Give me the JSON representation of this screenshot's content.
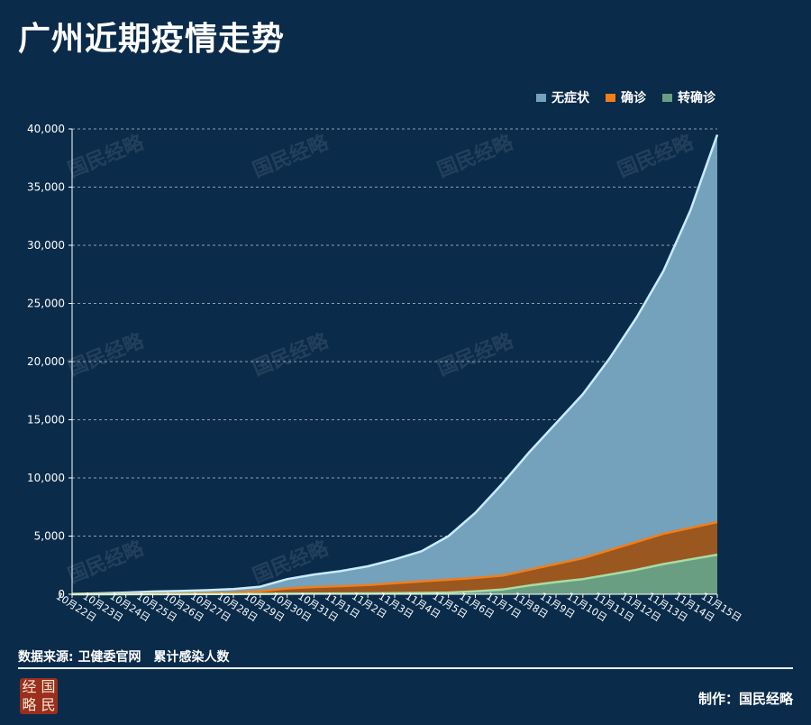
{
  "title": "广州近期疫情走势",
  "source_label": "数据来源: 卫健委官网",
  "source_note": "累计感染人数",
  "credit": "制作：国民经略",
  "seal": {
    "chars": [
      "经",
      "国",
      "略",
      "民"
    ],
    "color": "#9a2f1e"
  },
  "watermark": "国民经略",
  "colors": {
    "background": "#0a2b4a",
    "asymptomatic_fill": "#74a1bb",
    "asymptomatic_line": "#c8ecff",
    "confirmed_fill": "#9a571f",
    "confirmed_line": "#f07e1a",
    "converted_fill": "#6a9e82",
    "converted_line": "#a8dca4"
  },
  "chart_data": {
    "type": "area",
    "title": "广州近期疫情走势",
    "xlabel": "",
    "ylabel": "",
    "ylim": [
      0,
      40000
    ],
    "yticks": [
      0,
      5000,
      10000,
      15000,
      20000,
      25000,
      30000,
      35000,
      40000
    ],
    "ytick_labels": [
      "0",
      "5,000",
      "10,000",
      "15,000",
      "20,000",
      "25,000",
      "30,000",
      "35,000",
      "40,000"
    ],
    "grid": true,
    "legend_position": "top-right",
    "categories": [
      "10月22日",
      "10月23日",
      "10月24日",
      "10月25日",
      "10月26日",
      "10月27日",
      "10月28日",
      "10月29日",
      "10月30日",
      "10月31日",
      "11月1日",
      "11月2日",
      "11月3日",
      "11月4日",
      "11月5日",
      "11月6日",
      "11月7日",
      "11月8日",
      "11月9日",
      "11月10日",
      "11月11日",
      "11月12日",
      "11月13日",
      "11月14日",
      "11月15日"
    ],
    "series": [
      {
        "name": "无症状",
        "key": "asymptomatic",
        "values": [
          30,
          80,
          150,
          230,
          280,
          350,
          450,
          650,
          1300,
          1700,
          2000,
          2400,
          3000,
          3700,
          5000,
          7000,
          9500,
          12200,
          14700,
          17200,
          20300,
          23800,
          27800,
          33000,
          39500
        ]
      },
      {
        "name": "确诊",
        "key": "confirmed",
        "values": [
          5,
          10,
          20,
          40,
          60,
          90,
          130,
          250,
          500,
          620,
          700,
          800,
          950,
          1100,
          1250,
          1400,
          1600,
          2100,
          2600,
          3100,
          3800,
          4500,
          5200,
          5700,
          6200
        ]
      },
      {
        "name": "转确诊",
        "key": "converted",
        "values": [
          0,
          0,
          0,
          5,
          10,
          15,
          20,
          30,
          50,
          60,
          70,
          80,
          100,
          120,
          150,
          250,
          400,
          750,
          1050,
          1300,
          1700,
          2100,
          2600,
          3000,
          3400
        ]
      }
    ]
  }
}
